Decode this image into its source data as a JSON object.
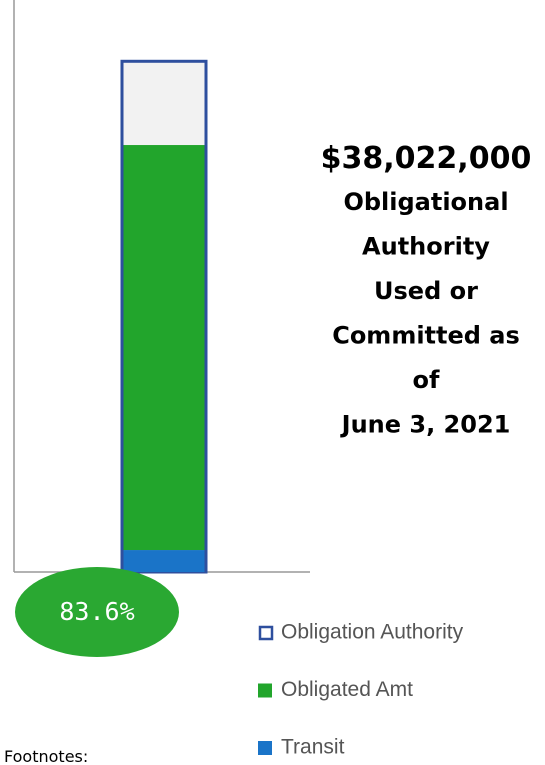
{
  "chart_data": {
    "type": "bar",
    "categories": [
      null
    ],
    "series": [
      {
        "name": "Obligation Authority",
        "color": "#2e4f9e",
        "fill": "#f2f2f2",
        "values": [
          100
        ]
      },
      {
        "name": "Obligated Amt",
        "color": "#22a52c",
        "values": [
          79.3
        ]
      },
      {
        "name": "Transit",
        "color": "#1a74c8",
        "values": [
          4.3
        ]
      }
    ],
    "ylim": [
      0,
      112
    ],
    "percent_label": "83.6%",
    "amount": "$38,022,000",
    "caption_lines": [
      "Obligational",
      "Authority",
      "Used or",
      "Committed as",
      "of",
      "June 3, 2021"
    ],
    "footnote": "Footnotes:"
  }
}
